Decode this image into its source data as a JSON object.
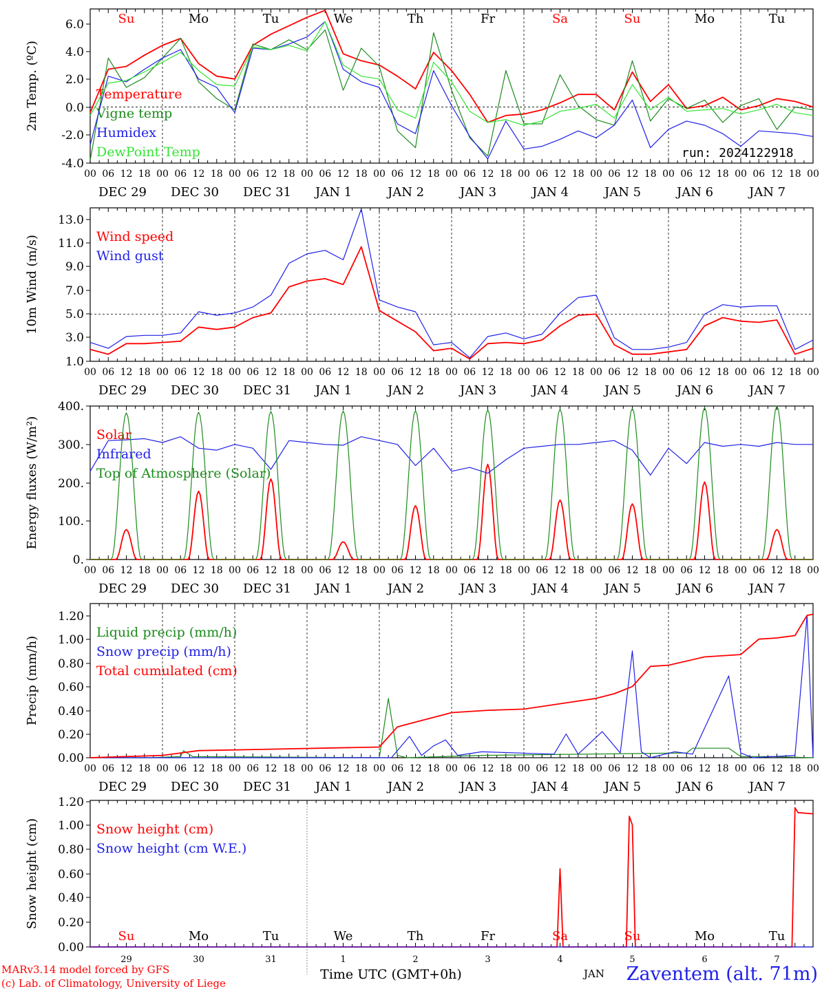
{
  "chart_data": [
    {
      "type": "line",
      "ylabel": "2m Temp. (ºC)",
      "ylim": [
        -4,
        7
      ],
      "yticks": [
        "6.0",
        "4.0",
        "2.0",
        "0.0",
        "-2.0",
        "-4.0"
      ],
      "reference_line": 0,
      "x_unit": "hours since DEC 29 00 UTC",
      "x": [
        0,
        6,
        12,
        18,
        24,
        30,
        36,
        42,
        48,
        54,
        60,
        66,
        72,
        78,
        84,
        90,
        96,
        102,
        108,
        114,
        120,
        126,
        132,
        138,
        144,
        150,
        156,
        162,
        168,
        174,
        180,
        186,
        192,
        198,
        204,
        210,
        216,
        222,
        228,
        234,
        240
      ],
      "series": [
        {
          "name": "Temperature",
          "color": "#ff0000",
          "values": [
            -0.4,
            2.7,
            2.9,
            3.7,
            4.4,
            4.9,
            3.1,
            2.2,
            2.0,
            4.4,
            5.2,
            5.8,
            6.4,
            6.9,
            3.8,
            3.3,
            3.0,
            2.2,
            1.3,
            3.9,
            2.6,
            0.9,
            -1.1,
            -0.6,
            -0.5,
            -0.2,
            0.3,
            0.9,
            0.9,
            -0.2,
            2.5,
            0.4,
            1.6,
            -0.1,
            0.1,
            0.7,
            -0.2,
            0.1,
            0.6,
            0.4,
            0.0
          ]
        },
        {
          "name": "Vigne temp",
          "color": "#1c8a1c",
          "values": [
            -3.8,
            3.5,
            1.4,
            2.1,
            3.5,
            4.9,
            1.8,
            0.6,
            -0.2,
            4.5,
            4.1,
            4.8,
            4.1,
            5.5,
            1.2,
            4.2,
            2.9,
            -1.7,
            -2.9,
            5.3,
            1.2,
            -2.2,
            -3.5,
            2.6,
            -1.2,
            -1.2,
            2.3,
            0.1,
            -0.9,
            -1.3,
            3.3,
            -1.0,
            0.6,
            -0.1,
            0.5,
            -1.1,
            0.1,
            0.6,
            -1.6,
            0.0,
            -0.2
          ]
        },
        {
          "name": "Humidex",
          "color": "#1f1fe8",
          "values": [
            -2.7,
            2.2,
            1.8,
            2.7,
            3.5,
            4.1,
            2.0,
            1.4,
            -0.4,
            4.2,
            4.1,
            4.5,
            5.0,
            6.1,
            2.7,
            1.8,
            1.4,
            -1.2,
            -1.9,
            2.6,
            0.1,
            -2.1,
            -3.7,
            -1.0,
            -3.0,
            -2.8,
            -2.3,
            -1.7,
            -2.2,
            -1.3,
            0.5,
            -2.9,
            -1.6,
            -1.0,
            -1.3,
            -1.9,
            -2.8,
            -1.7,
            -1.8,
            -1.9,
            -2.1
          ]
        },
        {
          "name": "DewPoint Temp",
          "color": "#33e533",
          "values": [
            -0.6,
            1.7,
            1.9,
            2.5,
            3.2,
            3.9,
            2.6,
            1.6,
            1.5,
            4.3,
            4.1,
            4.4,
            4.0,
            6.1,
            3.0,
            2.2,
            2.0,
            -0.2,
            -0.8,
            3.2,
            1.8,
            -0.3,
            -1.1,
            -0.9,
            -1.3,
            -1.0,
            -0.3,
            -0.1,
            0.2,
            -0.8,
            1.6,
            -0.2,
            0.7,
            -0.3,
            -0.2,
            -0.1,
            -0.5,
            -0.2,
            0.2,
            -0.4,
            -0.6
          ]
        }
      ],
      "annotation": "run: 2024122918"
    },
    {
      "type": "line",
      "ylabel": "10m Wind (m/s)",
      "ylim": [
        1,
        14
      ],
      "yticks": [
        "13.0",
        "11.0",
        "9.0",
        "7.0",
        "5.0",
        "3.0",
        "1.0"
      ],
      "reference_line": 5,
      "x_unit": "hours since DEC 29 00 UTC",
      "x": [
        0,
        6,
        12,
        18,
        24,
        30,
        36,
        42,
        48,
        54,
        60,
        66,
        72,
        78,
        84,
        90,
        96,
        102,
        108,
        114,
        120,
        126,
        132,
        138,
        144,
        150,
        156,
        162,
        168,
        174,
        180,
        186,
        192,
        198,
        204,
        210,
        216,
        222,
        228,
        234,
        240
      ],
      "series": [
        {
          "name": "Wind speed",
          "color": "#ff0000",
          "values": [
            2.0,
            1.6,
            2.5,
            2.5,
            2.6,
            2.7,
            3.9,
            3.7,
            3.9,
            4.7,
            5.1,
            7.3,
            7.8,
            8.0,
            7.5,
            10.7,
            5.3,
            4.4,
            3.5,
            1.9,
            2.1,
            1.2,
            2.5,
            2.6,
            2.5,
            2.8,
            4.0,
            4.9,
            5.0,
            2.4,
            1.6,
            1.6,
            1.8,
            2.0,
            4.0,
            4.7,
            4.4,
            4.3,
            4.5,
            1.6,
            2.1
          ]
        },
        {
          "name": "Wind gust",
          "color": "#1f1fe8",
          "values": [
            2.6,
            2.1,
            3.1,
            3.2,
            3.2,
            3.4,
            5.2,
            4.9,
            5.1,
            5.6,
            6.6,
            9.3,
            10.1,
            10.4,
            9.6,
            13.9,
            6.2,
            5.6,
            5.2,
            2.4,
            2.6,
            1.3,
            3.1,
            3.4,
            2.9,
            3.3,
            5.1,
            6.4,
            6.6,
            3.0,
            2.0,
            2.0,
            2.2,
            2.6,
            5.0,
            5.8,
            5.6,
            5.7,
            5.7,
            2.0,
            2.8
          ]
        }
      ]
    },
    {
      "type": "line",
      "ylabel": "Energy fluxes (W/m²)",
      "ylim": [
        0,
        400
      ],
      "yticks": [
        "400.",
        "300.",
        "200.",
        "100.",
        "0."
      ],
      "x_unit": "hours since DEC 29 00 UTC",
      "series": [
        {
          "name": "Solar",
          "color": "#ff0000",
          "days": [
            0,
            1,
            2,
            3,
            4,
            5,
            6,
            7,
            8,
            9
          ],
          "peaks": [
            78,
            178,
            210,
            46,
            140,
            248,
            155,
            145,
            202,
            78
          ]
        },
        {
          "name": "Infrared",
          "color": "#1f1fe8",
          "x": [
            0,
            6,
            12,
            18,
            24,
            30,
            36,
            42,
            48,
            54,
            60,
            66,
            72,
            78,
            84,
            90,
            96,
            102,
            108,
            114,
            120,
            126,
            132,
            138,
            144,
            150,
            156,
            162,
            168,
            174,
            180,
            186,
            192,
            198,
            204,
            210,
            216,
            222,
            228,
            234,
            240
          ],
          "values": [
            230,
            310,
            312,
            315,
            305,
            320,
            290,
            285,
            300,
            290,
            235,
            310,
            305,
            300,
            298,
            320,
            310,
            300,
            245,
            290,
            230,
            240,
            225,
            260,
            290,
            295,
            300,
            300,
            305,
            310,
            285,
            220,
            290,
            250,
            305,
            295,
            300,
            295,
            305,
            300,
            300
          ]
        },
        {
          "name": "Top of Atmosphere (Solar)",
          "color": "#1c8a1c",
          "days": [
            0,
            1,
            2,
            3,
            4,
            5,
            6,
            7,
            8,
            9
          ],
          "peaks": [
            382,
            384,
            386,
            387,
            388,
            390,
            392,
            394,
            396,
            400
          ]
        }
      ]
    },
    {
      "type": "line",
      "ylabel": "Precip (mm/h)",
      "ylim": [
        0,
        1.3
      ],
      "yticks": [
        "1.20",
        "1.00",
        "0.80",
        "0.60",
        "0.40",
        "0.20",
        "0.00"
      ],
      "x_unit": "hours since DEC 29 00 UTC",
      "series": [
        {
          "name": "Liquid precip (mm/h)",
          "color": "#1c8a1c",
          "x": [
            0,
            20,
            30,
            31,
            34,
            96,
            99,
            102,
            105,
            130,
            198,
            200,
            212,
            216,
            226,
            240
          ],
          "values": [
            0,
            0,
            0.01,
            0.06,
            0.01,
            0,
            0.5,
            0.02,
            0,
            0.02,
            0.04,
            0.08,
            0.08,
            0.01,
            0.01,
            0
          ]
        },
        {
          "name": "Snow precip (mm/h)",
          "color": "#1f1fe8",
          "x": [
            0,
            100,
            106,
            110,
            114,
            118,
            122,
            130,
            154,
            158,
            162,
            170,
            176,
            180,
            183,
            186,
            194,
            200,
            212,
            216,
            220,
            234,
            238,
            240
          ],
          "values": [
            0,
            0,
            0.18,
            0.02,
            0.1,
            0.15,
            0.02,
            0.05,
            0.03,
            0.2,
            0.03,
            0.22,
            0.04,
            0.9,
            0.05,
            0,
            0.05,
            0.03,
            0.69,
            0.04,
            0,
            0.02,
            1.2,
            0
          ]
        },
        {
          "name": "Total cumulated (cm)",
          "color": "#ff0000",
          "x": [
            0,
            24,
            36,
            96,
            102,
            108,
            114,
            120,
            132,
            144,
            168,
            174,
            180,
            186,
            192,
            204,
            216,
            222,
            228,
            234,
            238,
            240
          ],
          "values": [
            0,
            0.02,
            0.06,
            0.09,
            0.26,
            0.3,
            0.34,
            0.38,
            0.4,
            0.41,
            0.5,
            0.54,
            0.6,
            0.77,
            0.78,
            0.85,
            0.87,
            1.0,
            1.01,
            1.03,
            1.2,
            1.21
          ]
        }
      ]
    },
    {
      "type": "line",
      "ylabel": "Snow height (cm)",
      "ylim": [
        0,
        1.2
      ],
      "yticks": [
        "1.20",
        "1.00",
        "0.80",
        "0.60",
        "0.40",
        "0.20",
        "0.00"
      ],
      "x_unit": "hours since DEC 29 00 UTC",
      "series": [
        {
          "name": "Snow height (cm)",
          "color": "#ff0000",
          "x": [
            0,
            155,
            156,
            157,
            178,
            179,
            180,
            181,
            233,
            234,
            235,
            240
          ],
          "values": [
            0,
            0,
            0.64,
            0,
            0,
            1.07,
            1.0,
            0,
            0,
            1.14,
            1.1,
            1.09
          ]
        },
        {
          "name": "Snow height (cm W.E.)",
          "color": "#1f1fe8",
          "x": [
            0,
            240
          ],
          "values": [
            0,
            0
          ]
        }
      ]
    }
  ],
  "weekdays": [
    {
      "label": "Su",
      "color": "#ff0000"
    },
    {
      "label": "Mo",
      "color": "#000000"
    },
    {
      "label": "Tu",
      "color": "#000000"
    },
    {
      "label": "We",
      "color": "#000000"
    },
    {
      "label": "Th",
      "color": "#000000"
    },
    {
      "label": "Fr",
      "color": "#000000"
    },
    {
      "label": "Sa",
      "color": "#ff0000"
    },
    {
      "label": "Su",
      "color": "#ff0000"
    },
    {
      "label": "Mo",
      "color": "#000000"
    },
    {
      "label": "Tu",
      "color": "#000000"
    }
  ],
  "date_labels": [
    "DEC 29",
    "DEC 30",
    "DEC 31",
    "JAN  1",
    "JAN  2",
    "JAN  3",
    "JAN  4",
    "JAN  5",
    "JAN  6",
    "JAN  7"
  ],
  "hour_ticks": [
    "00",
    "06",
    "12",
    "18"
  ],
  "bottom_day_numbers": [
    "29",
    "30",
    "31",
    "1",
    "2",
    "3",
    "4",
    "5",
    "6",
    "7"
  ],
  "bottom_month": "JAN",
  "xlabel": "Time UTC (GMT+0h)",
  "credit_line1": "MARv3.14 model forced by GFS",
  "credit_line2": "(c) Lab. of Climatology, University of Liege",
  "station": "Zaventem (alt. 71m)",
  "run_label": "run: 2024122918"
}
